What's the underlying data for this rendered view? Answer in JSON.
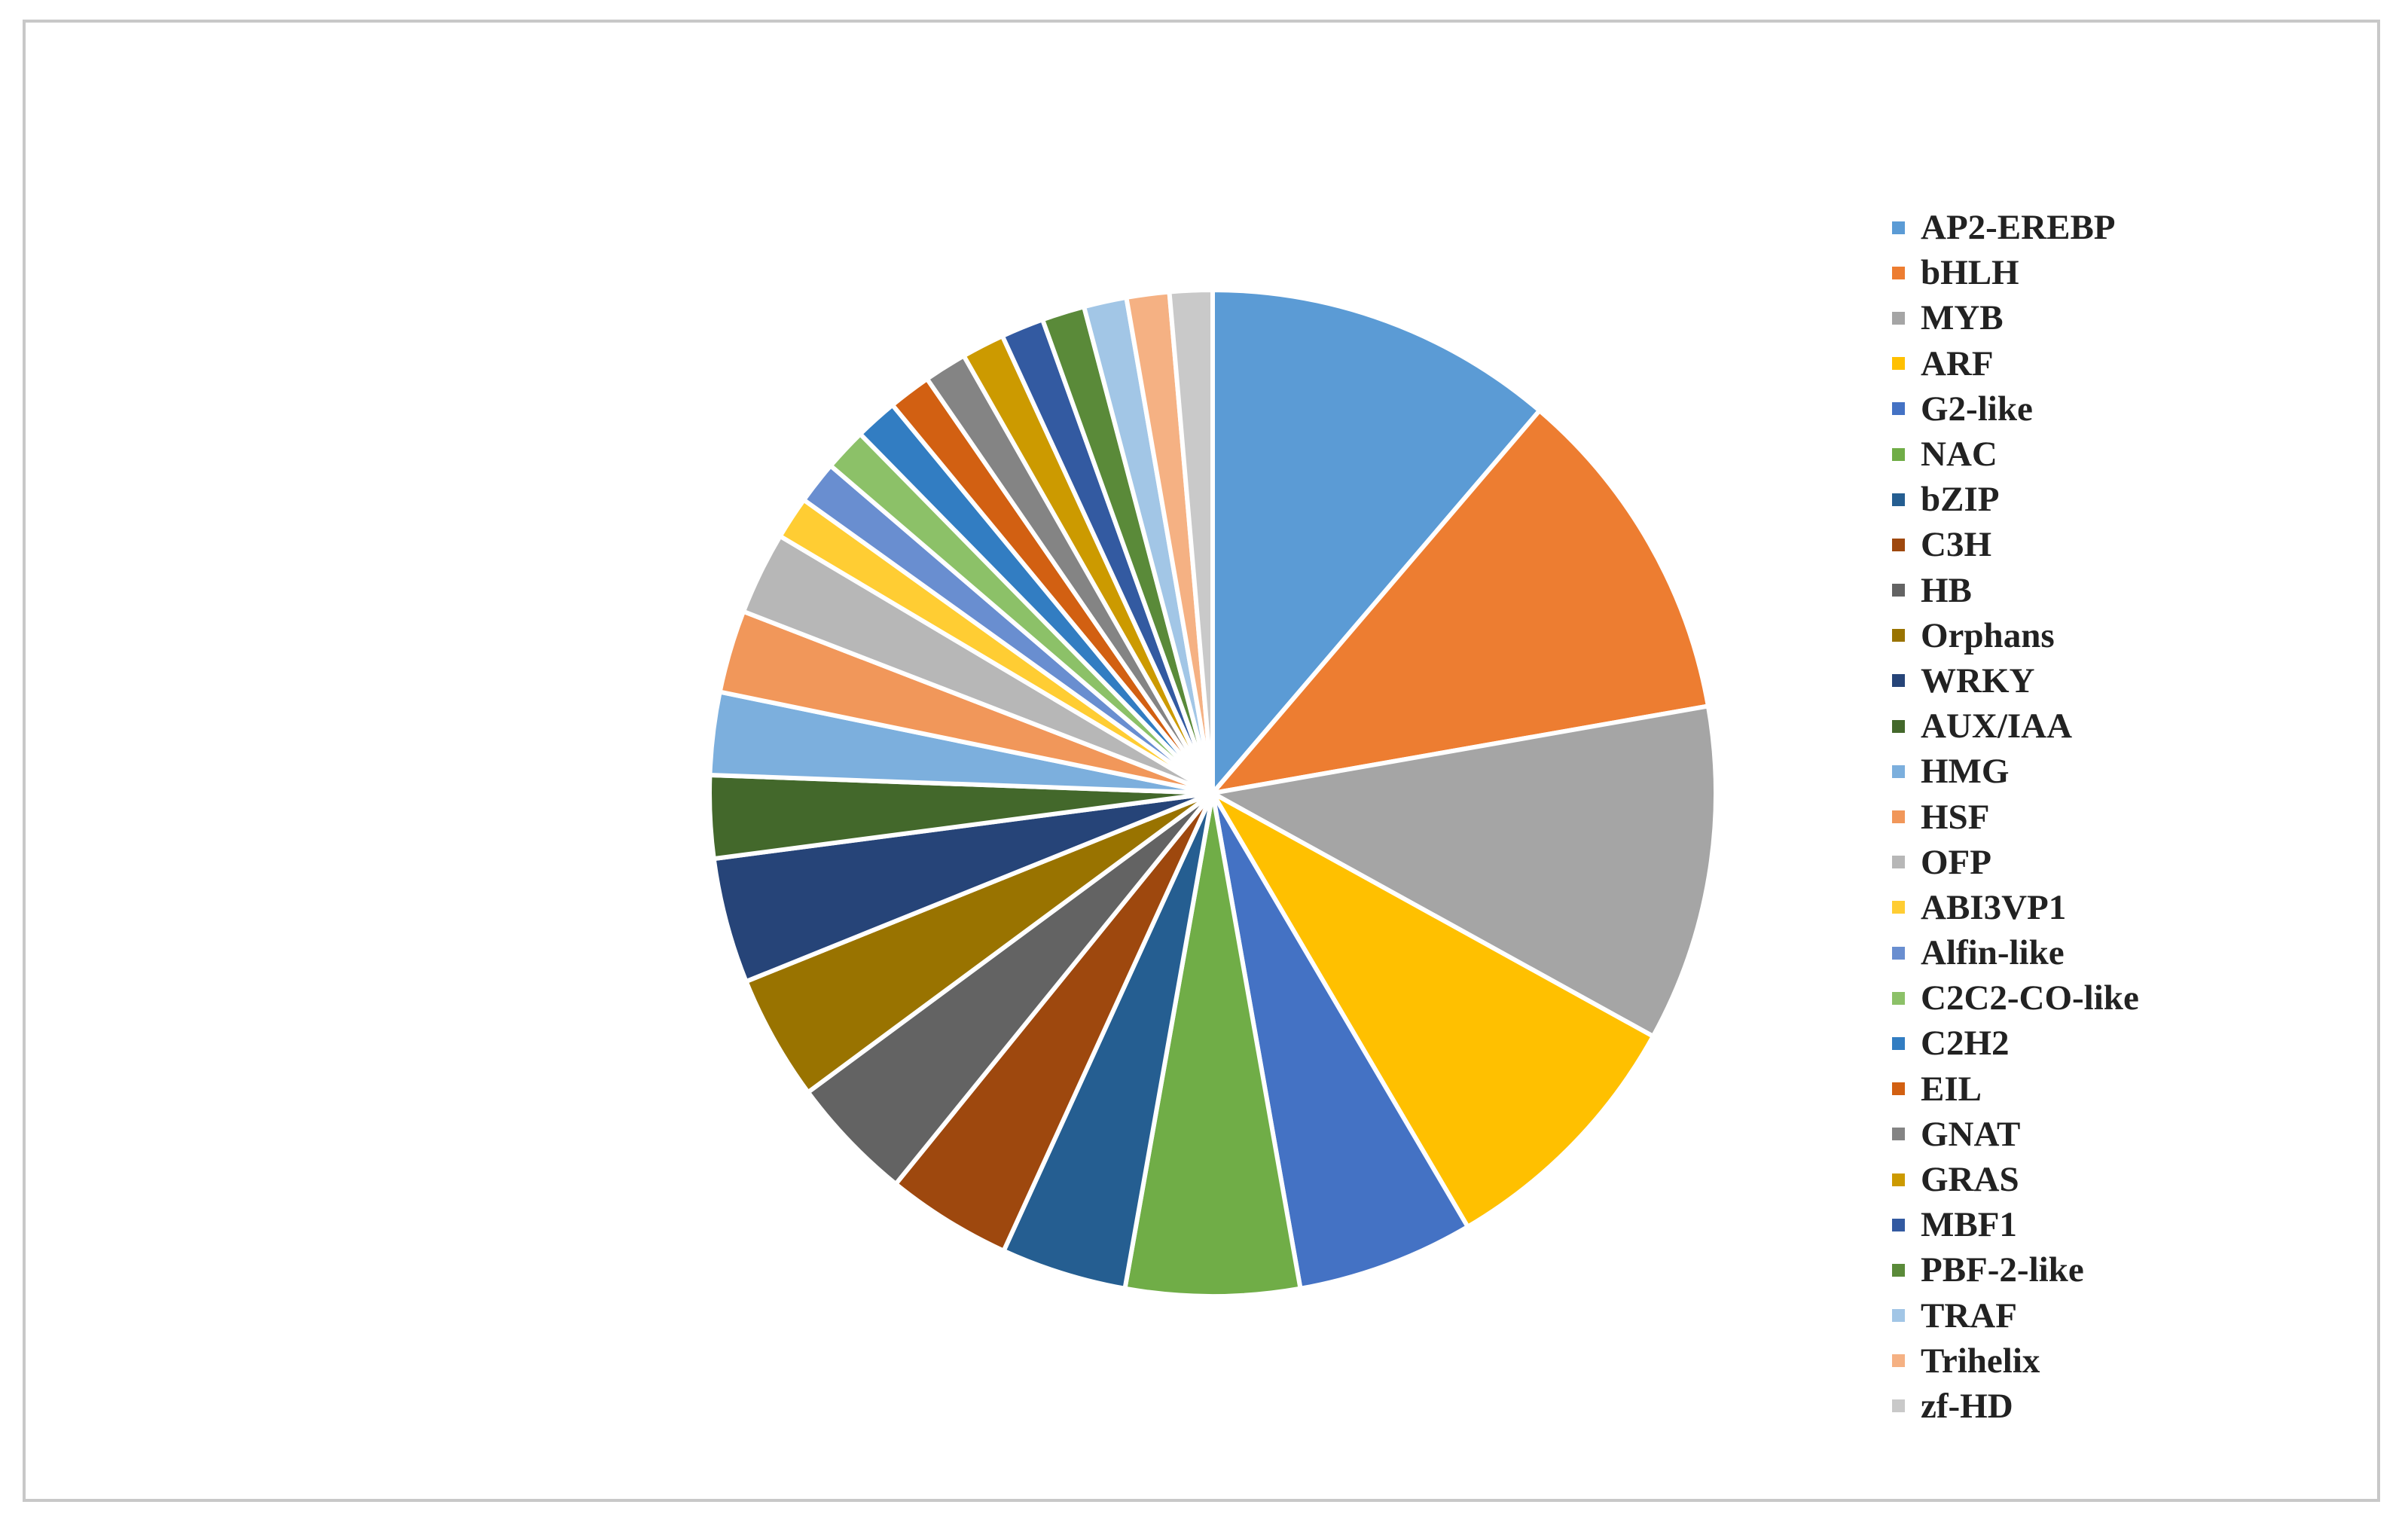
{
  "chart_data": {
    "type": "pie",
    "title": "",
    "legend_position": "right",
    "series": [
      {
        "name": "AP2-EREBP",
        "value": 12.3,
        "color": "#5b9bd5"
      },
      {
        "name": "bHLH",
        "value": 12.0,
        "color": "#ed7d31"
      },
      {
        "name": "MYB",
        "value": 11.8,
        "color": "#a5a5a5"
      },
      {
        "name": "ARF",
        "value": 9.3,
        "color": "#ffc000"
      },
      {
        "name": "G2-like",
        "value": 6.2,
        "color": "#4472c4"
      },
      {
        "name": "NAC",
        "value": 6.1,
        "color": "#70ad47"
      },
      {
        "name": "bZIP",
        "value": 4.4,
        "color": "#255e91"
      },
      {
        "name": "C3H",
        "value": 4.4,
        "color": "#9e480e"
      },
      {
        "name": "HB",
        "value": 4.4,
        "color": "#636363"
      },
      {
        "name": "Orphans",
        "value": 4.4,
        "color": "#997300"
      },
      {
        "name": "WRKY",
        "value": 4.4,
        "color": "#264478"
      },
      {
        "name": "AUX/IAA",
        "value": 2.9,
        "color": "#43682b"
      },
      {
        "name": "HMG",
        "value": 2.9,
        "color": "#7cafdd"
      },
      {
        "name": "HSF",
        "value": 2.9,
        "color": "#f1975a"
      },
      {
        "name": "OFP",
        "value": 2.9,
        "color": "#b7b7b7"
      },
      {
        "name": "ABI3VP1",
        "value": 1.5,
        "color": "#ffcd33"
      },
      {
        "name": "Alfin-like",
        "value": 1.5,
        "color": "#698ed0"
      },
      {
        "name": "C2C2-CO-like",
        "value": 1.5,
        "color": "#8cc168"
      },
      {
        "name": "C2H2",
        "value": 1.5,
        "color": "#327dc2"
      },
      {
        "name": "EIL",
        "value": 1.5,
        "color": "#d26012"
      },
      {
        "name": "GNAT",
        "value": 1.5,
        "color": "#848484"
      },
      {
        "name": "GRAS",
        "value": 1.5,
        "color": "#cc9a00"
      },
      {
        "name": "MBF1",
        "value": 1.5,
        "color": "#335aa1"
      },
      {
        "name": "PBF-2-like",
        "value": 1.5,
        "color": "#5a8a39"
      },
      {
        "name": "TRAF",
        "value": 1.5,
        "color": "#a2c6e6"
      },
      {
        "name": "Trihelix",
        "value": 1.5,
        "color": "#f5b183"
      },
      {
        "name": "zf-HD",
        "value": 1.5,
        "color": "#c9c9c9"
      }
    ]
  }
}
